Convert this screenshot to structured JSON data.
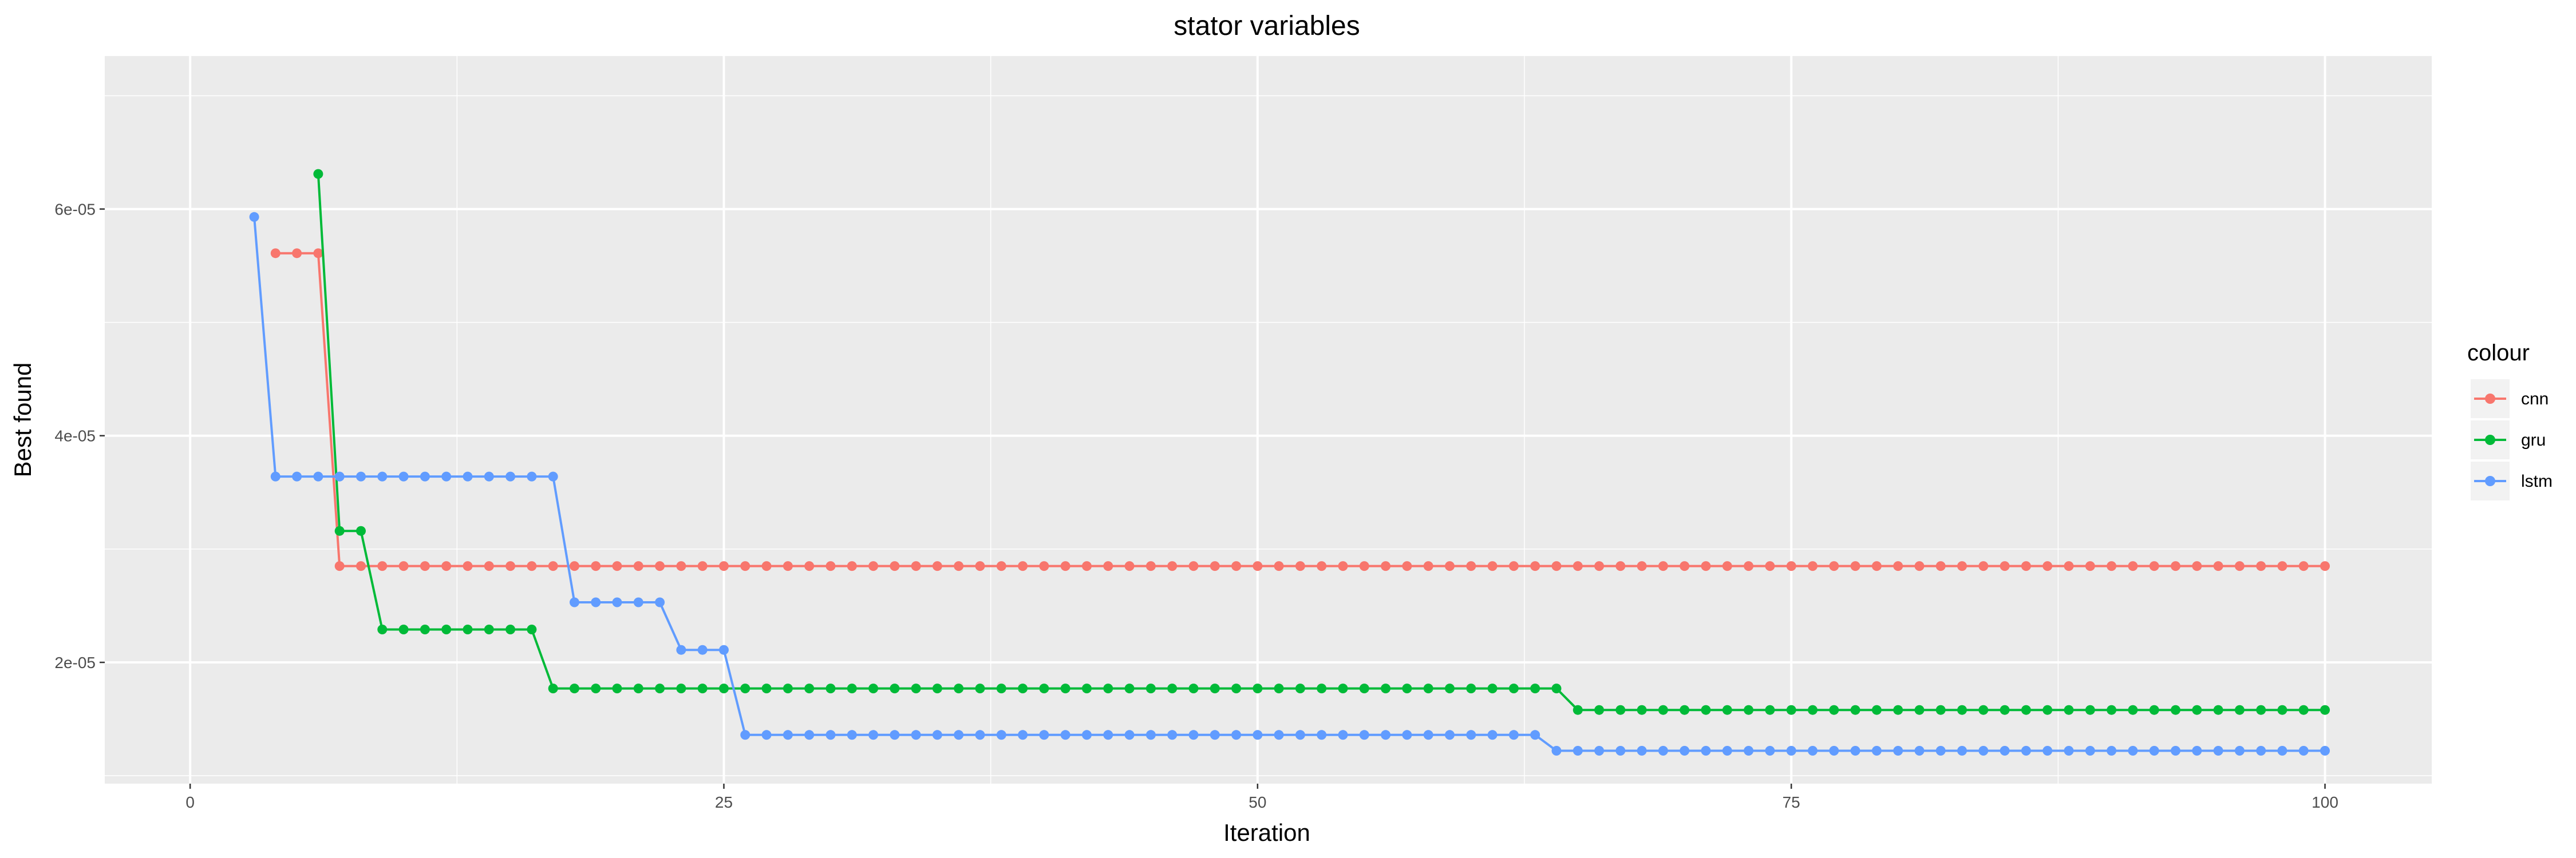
{
  "chart_data": {
    "type": "line",
    "title": "stator variables",
    "xlabel": "Iteration",
    "ylabel": "Best found",
    "xlim": [
      -4,
      105
    ],
    "ylim": [
      9.3e-06,
      7.35e-05
    ],
    "x_ticks": [
      0,
      25,
      50,
      75,
      100
    ],
    "x_tick_labels": [
      "0",
      "25",
      "50",
      "75",
      "100"
    ],
    "y_ticks": [
      2e-05,
      4e-05,
      6e-05
    ],
    "y_tick_labels": [
      "2e-05",
      "4e-05",
      "6e-05"
    ],
    "grid": true,
    "legend_title": "colour",
    "legend_position": "right",
    "series": [
      {
        "name": "cnn",
        "color": "#F8766D",
        "steps": [
          [
            4,
            5.61e-05
          ],
          [
            7,
            2.85e-05
          ]
        ],
        "x_end": 100
      },
      {
        "name": "gru",
        "color": "#00BA38",
        "steps": [
          [
            6,
            6.31e-05
          ],
          [
            7,
            3.16e-05
          ],
          [
            9,
            2.29e-05
          ],
          [
            17,
            1.77e-05
          ],
          [
            65,
            1.58e-05
          ]
        ],
        "x_end": 100
      },
      {
        "name": "lstm",
        "color": "#619CFF",
        "steps": [
          [
            3,
            5.93e-05
          ],
          [
            4,
            3.64e-05
          ],
          [
            18,
            2.53e-05
          ],
          [
            23,
            2.11e-05
          ],
          [
            26,
            1.36e-05
          ],
          [
            64,
            1.22e-05
          ]
        ],
        "x_end": 100
      }
    ]
  }
}
